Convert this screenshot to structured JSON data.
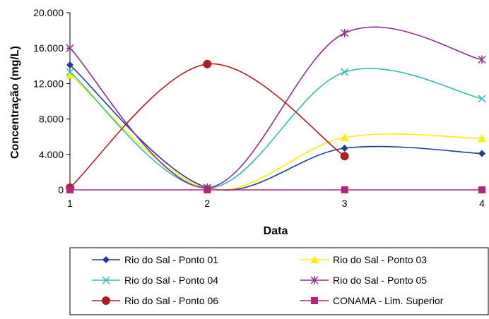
{
  "chart_data": {
    "type": "line",
    "xlabel": "Data",
    "ylabel": "Concentração (mg/L)",
    "categories": [
      "1",
      "2",
      "3",
      "4"
    ],
    "ylim": [
      0,
      20000
    ],
    "yticks": [
      0,
      4000,
      8000,
      12000,
      16000,
      20000
    ],
    "ytick_labels": [
      "0",
      "4.000",
      "8.000",
      "12.000",
      "16.000",
      "20.000"
    ],
    "grid": false,
    "smooth": true,
    "legend_position": "bottom",
    "series": [
      {
        "name": "Rio do Sal - Ponto 01",
        "values": [
          14100,
          250,
          4700,
          4100
        ],
        "color": "#1f3c99",
        "marker": "diamond"
      },
      {
        "name": "Rio do Sal - Ponto 03",
        "values": [
          13000,
          150,
          5900,
          5800
        ],
        "color": "#ffee00",
        "marker": "triangle"
      },
      {
        "name": "Rio do Sal - Ponto 04",
        "values": [
          13300,
          200,
          13300,
          10300
        ],
        "color": "#2ebdb6",
        "marker": "x"
      },
      {
        "name": "Rio do Sal - Ponto 05",
        "values": [
          16000,
          250,
          17700,
          14700
        ],
        "color": "#8b2e91",
        "marker": "star"
      },
      {
        "name": "Rio do Sal - Ponto 06",
        "values": [
          250,
          14200,
          3800,
          null
        ],
        "color": "#b01e23",
        "marker": "circle"
      },
      {
        "name": "CONAMA - Lim. Superior",
        "values": [
          0,
          0,
          0,
          0
        ],
        "color": "#b5227f",
        "marker": "square"
      }
    ]
  }
}
